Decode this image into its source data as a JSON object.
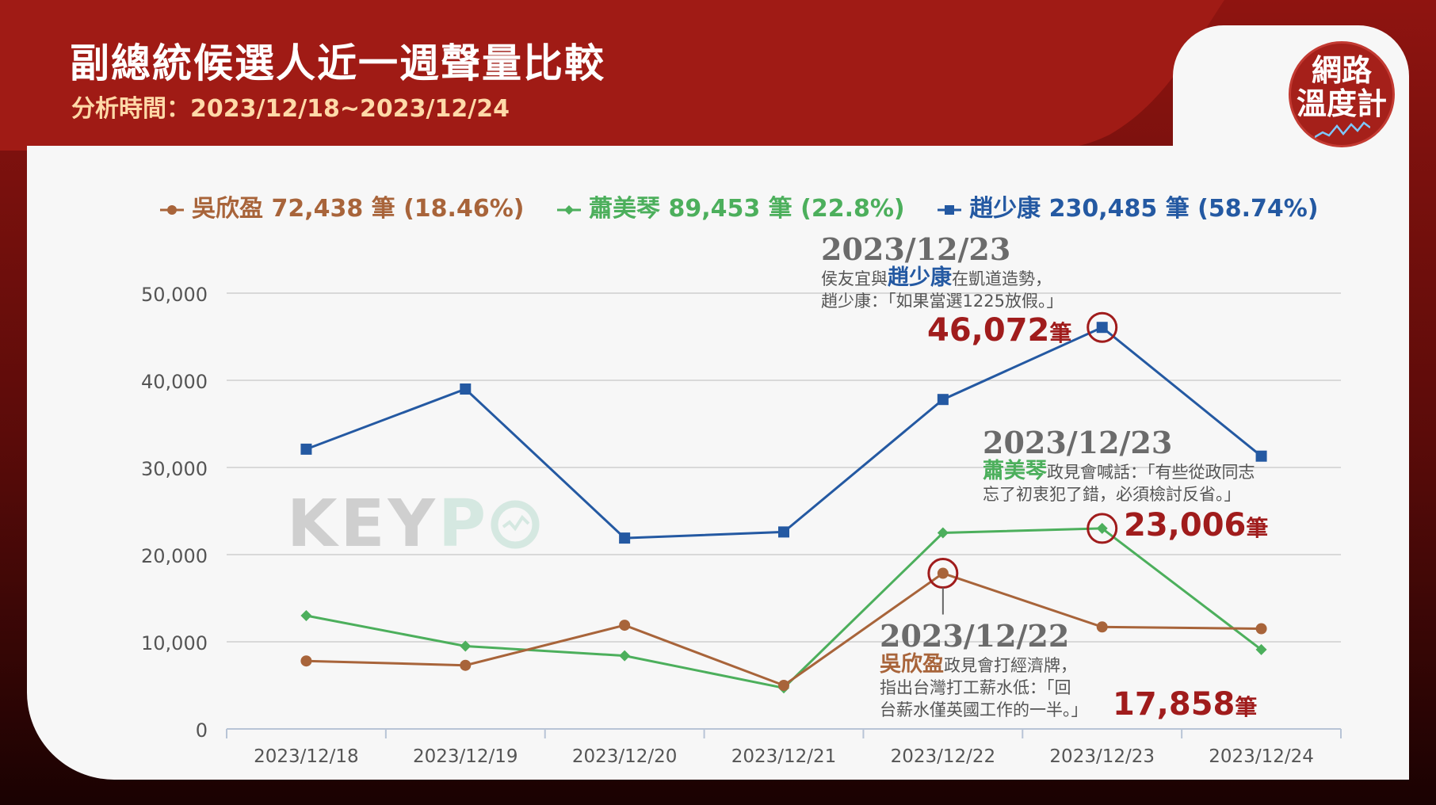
{
  "header": {
    "title": "副總統候選人近一週聲量比較",
    "subtitle": "分析時間：2023/12/18~2023/12/24"
  },
  "logo": {
    "line1": "網路",
    "line2": "溫度計",
    "icon": "trend-line-icon"
  },
  "watermark": {
    "text1": "KEY",
    "text2": "P",
    "icon": "keypo-o-icon"
  },
  "colors": {
    "wu": "#a8643a",
    "hsiao": "#4caf5c",
    "chao": "#2459a2",
    "highlight": "#a01c1c"
  },
  "legend": [
    {
      "series": "wu",
      "label": "吳欣盈 72,438 筆 (18.46%)",
      "marker": "circle"
    },
    {
      "series": "hsiao",
      "label": "蕭美琴 89,453 筆 (22.8%)",
      "marker": "diamond"
    },
    {
      "series": "chao",
      "label": "趙少康 230,485 筆 (58.74%)",
      "marker": "square"
    }
  ],
  "chart_data": {
    "type": "line",
    "categories": [
      "2023/12/18",
      "2023/12/19",
      "2023/12/20",
      "2023/12/21",
      "2023/12/22",
      "2023/12/23",
      "2023/12/24"
    ],
    "ylim": [
      0,
      50000
    ],
    "yticks": [
      0,
      10000,
      20000,
      30000,
      40000,
      50000
    ],
    "ytick_labels": [
      "0",
      "10,000",
      "20,000",
      "30,000",
      "40,000",
      "50,000"
    ],
    "grid": true,
    "legend_position": "top",
    "series": [
      {
        "key": "chao",
        "name": "趙少康",
        "values": [
          32100,
          39000,
          21900,
          22600,
          37800,
          46072,
          31300
        ]
      },
      {
        "key": "hsiao",
        "name": "蕭美琴",
        "values": [
          13000,
          9500,
          8400,
          4700,
          22500,
          23006,
          9100
        ]
      },
      {
        "key": "wu",
        "name": "吳欣盈",
        "values": [
          7800,
          7300,
          11900,
          5000,
          17858,
          11700,
          11500
        ]
      }
    ],
    "annotations": [
      {
        "series": "chao",
        "index": 5,
        "date": "2023/12/23",
        "pre": "侯友宜與",
        "name": "趙少康",
        "post": "在凱道造勢，",
        "line2": "趙少康：「如果當選1225放假。」",
        "value": "46,072",
        "unit": "筆"
      },
      {
        "series": "hsiao",
        "index": 5,
        "date": "2023/12/23",
        "name": "蕭美琴",
        "post": "政見會喊話：「有些從政同志",
        "line2": "忘了初衷犯了錯，必須檢討反省。」",
        "value": "23,006",
        "unit": "筆"
      },
      {
        "series": "wu",
        "index": 4,
        "date": "2023/12/22",
        "name": "吳欣盈",
        "post": "政見會打經濟牌，",
        "line2": "指出台灣打工薪水低：「回",
        "line3": "台薪水僅英國工作的一半。」",
        "value": "17,858",
        "unit": "筆"
      }
    ]
  }
}
